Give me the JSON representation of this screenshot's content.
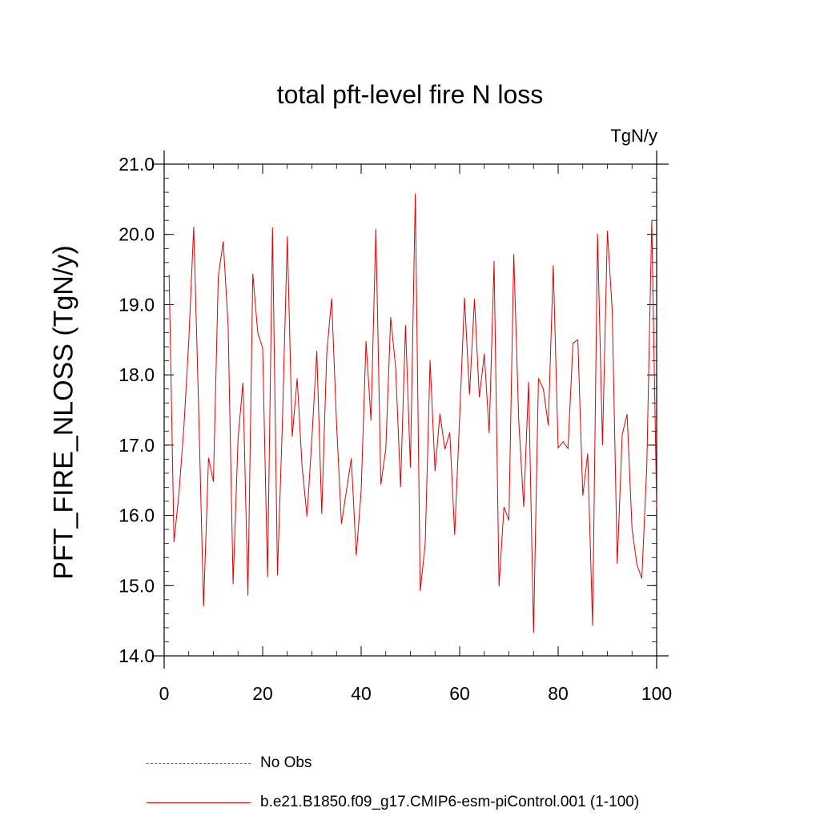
{
  "chart_data": {
    "type": "line",
    "title": "total pft-level fire N loss",
    "units": "TgN/y",
    "xlabel": "",
    "ylabel": "PFT_FIRE_NLOSS  (TgN/y)",
    "xlim": [
      0,
      100
    ],
    "ylim": [
      14.0,
      21.0
    ],
    "xticks": [
      0,
      20,
      40,
      60,
      80,
      100
    ],
    "xtick_labels": [
      "0",
      "20",
      "40",
      "60",
      "80",
      "100"
    ],
    "yticks": [
      14.0,
      15.0,
      16.0,
      17.0,
      18.0,
      19.0,
      20.0,
      21.0
    ],
    "ytick_labels": [
      "14.0",
      "15.0",
      "16.0",
      "17.0",
      "18.0",
      "19.0",
      "20.0",
      "21.0"
    ],
    "grid": false,
    "legend": [
      {
        "label": "No Obs",
        "style": "dashed",
        "color": "#6a5acd"
      },
      {
        "label": "b.e21.B1850.f09_g17.CMIP6-esm-piControl.001 (1-100)",
        "style": "solid",
        "color": "#e00000"
      }
    ],
    "series": [
      {
        "name": "b.e21.B1850.f09_g17.CMIP6-esm-piControl.001 (1-100)",
        "color": "#e00000",
        "x": [
          1,
          2,
          3,
          4,
          5,
          6,
          7,
          8,
          9,
          10,
          11,
          12,
          13,
          14,
          15,
          16,
          17,
          18,
          19,
          20,
          21,
          22,
          23,
          24,
          25,
          26,
          27,
          28,
          29,
          30,
          31,
          32,
          33,
          34,
          35,
          36,
          37,
          38,
          39,
          40,
          41,
          42,
          43,
          44,
          45,
          46,
          47,
          48,
          49,
          50,
          51,
          52,
          53,
          54,
          55,
          56,
          57,
          58,
          59,
          60,
          61,
          62,
          63,
          64,
          65,
          66,
          67,
          68,
          69,
          70,
          71,
          72,
          73,
          74,
          75,
          76,
          77,
          78,
          79,
          80,
          81,
          82,
          83,
          84,
          85,
          86,
          87,
          88,
          89,
          90,
          91,
          92,
          93,
          94,
          95,
          96,
          97,
          98,
          99,
          100
        ],
        "values": [
          19.43,
          15.62,
          16.3,
          17.25,
          18.5,
          20.11,
          17.5,
          14.7,
          16.82,
          16.48,
          19.4,
          19.9,
          18.7,
          15.02,
          17.1,
          17.89,
          14.86,
          19.44,
          18.6,
          18.38,
          15.12,
          20.1,
          15.15,
          17.3,
          19.97,
          17.12,
          17.95,
          16.7,
          15.98,
          17.1,
          18.34,
          16.02,
          18.3,
          19.09,
          17.3,
          15.88,
          16.35,
          16.81,
          15.43,
          16.35,
          18.48,
          17.35,
          20.08,
          16.44,
          16.95,
          18.82,
          18.1,
          16.4,
          18.71,
          16.68,
          20.58,
          14.92,
          15.6,
          18.21,
          16.63,
          17.45,
          16.94,
          17.18,
          15.72,
          17.4,
          19.1,
          17.72,
          19.08,
          17.68,
          18.3,
          17.17,
          19.62,
          14.99,
          16.12,
          15.93,
          19.72,
          17.35,
          16.12,
          17.9,
          14.33,
          17.95,
          17.8,
          17.28,
          19.56,
          16.96,
          17.05,
          16.95,
          18.45,
          18.5,
          16.28,
          16.88,
          14.43,
          20.01,
          17.0,
          20.05,
          18.9,
          15.31,
          17.15,
          17.44,
          15.8,
          15.3,
          15.1,
          16.7,
          20.2,
          16.1
        ]
      }
    ]
  }
}
